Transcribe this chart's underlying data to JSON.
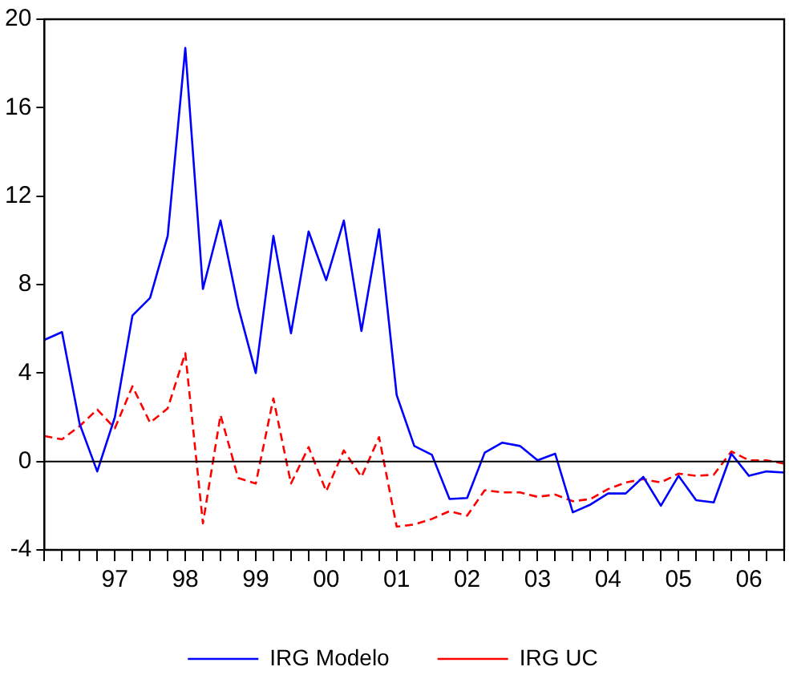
{
  "chart_data": {
    "type": "line",
    "categories": [
      null,
      null,
      null,
      null,
      "97",
      null,
      null,
      null,
      "98",
      null,
      null,
      null,
      "99",
      null,
      null,
      null,
      "00",
      null,
      null,
      null,
      "01",
      null,
      null,
      null,
      "02",
      null,
      null,
      null,
      "03",
      null,
      null,
      null,
      "04",
      null,
      null,
      null,
      "05",
      null,
      null,
      null,
      "06",
      null,
      null
    ],
    "series": [
      {
        "name": "IRG Modelo",
        "color": "#0000ff",
        "line_style": "solid",
        "values": [
          5.5,
          5.85,
          1.7,
          -0.45,
          2.0,
          6.6,
          7.4,
          10.2,
          18.7,
          7.8,
          10.9,
          7.0,
          4.0,
          10.2,
          5.8,
          10.4,
          8.2,
          10.9,
          5.9,
          10.5,
          3.0,
          0.7,
          0.3,
          -1.7,
          -1.65,
          0.4,
          0.85,
          0.7,
          0.05,
          0.35,
          -2.3,
          -1.95,
          -1.45,
          -1.45,
          -0.7,
          -2.0,
          -0.65,
          -1.75,
          -1.85,
          0.35,
          -0.65,
          -0.45,
          -0.5
        ]
      },
      {
        "name": "IRG UC",
        "color": "#ff0000",
        "line_style": "dashed",
        "values": [
          1.15,
          1.0,
          1.6,
          2.35,
          1.5,
          3.4,
          1.75,
          2.4,
          4.9,
          -2.8,
          2.1,
          -0.75,
          -1.0,
          2.85,
          -1.0,
          0.65,
          -1.35,
          0.5,
          -0.7,
          1.1,
          -2.95,
          -2.85,
          -2.6,
          -2.25,
          -2.45,
          -1.3,
          -1.4,
          -1.4,
          -1.6,
          -1.5,
          -1.8,
          -1.7,
          -1.25,
          -0.95,
          -0.8,
          -0.95,
          -0.55,
          -0.65,
          -0.6,
          0.45,
          0.05,
          0.05,
          -0.1
        ]
      }
    ],
    "ylim": [
      -4,
      20
    ],
    "yticks": [
      -4,
      0,
      4,
      8,
      12,
      16,
      20
    ],
    "ref_lines": [
      {
        "axis": "y",
        "value": 0,
        "color": "#000000"
      }
    ],
    "grid": false,
    "legend": "bottom",
    "marker": "none"
  }
}
